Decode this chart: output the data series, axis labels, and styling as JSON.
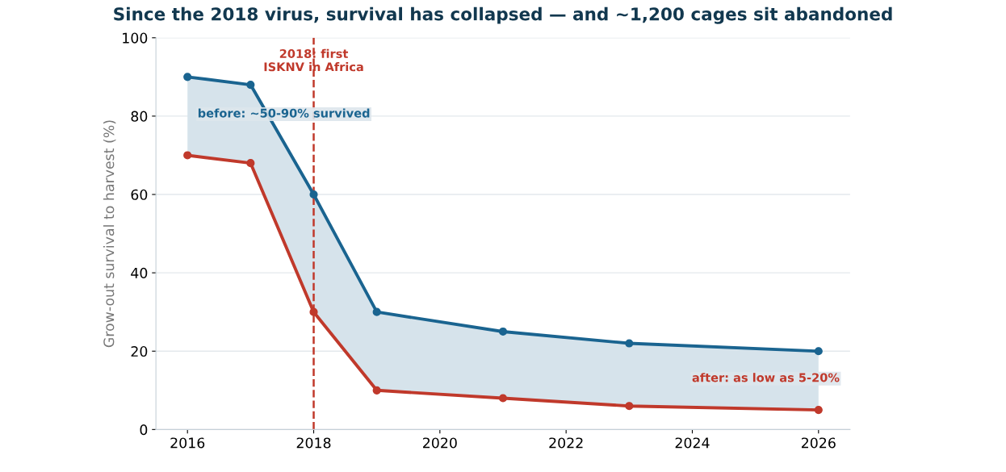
{
  "chart_data": {
    "type": "line",
    "title": "Since the 2018 virus, survival has collapsed — and ~1,200 cages sit abandoned",
    "ylabel": "Grow-out survival to harvest (%)",
    "x": [
      2016,
      2017,
      2018,
      2019,
      2021,
      2023,
      2026
    ],
    "series": [
      {
        "color": "#1a6490",
        "values": [
          90,
          88,
          60,
          30,
          25,
          22,
          20
        ],
        "lower": [
          70,
          68,
          30,
          10,
          8,
          6,
          5
        ],
        "upper": [
          90,
          88,
          60,
          30,
          25,
          22,
          20
        ]
      },
      {
        "color": "#c0392b",
        "values": [
          70,
          68,
          30,
          10,
          8,
          6,
          5
        ]
      }
    ],
    "xlim": [
      2015.5,
      2026.5
    ],
    "xticks": [
      2016,
      2018,
      2020,
      2022,
      2024,
      2026
    ],
    "ylim": [
      0,
      100
    ],
    "yticks": [
      0,
      20,
      40,
      60,
      80,
      100
    ],
    "grid": "y",
    "marker": "circle",
    "line_style": "solid",
    "legend": false,
    "ref_lines": [
      {
        "axis": "x",
        "value": 2018,
        "label": "2018: first\nISKNV in Africa",
        "color": "#c0392b",
        "line_style": "dashed"
      }
    ],
    "annotations": [
      "before: ~50-90% survived",
      "after: as low as 5-20%"
    ]
  }
}
